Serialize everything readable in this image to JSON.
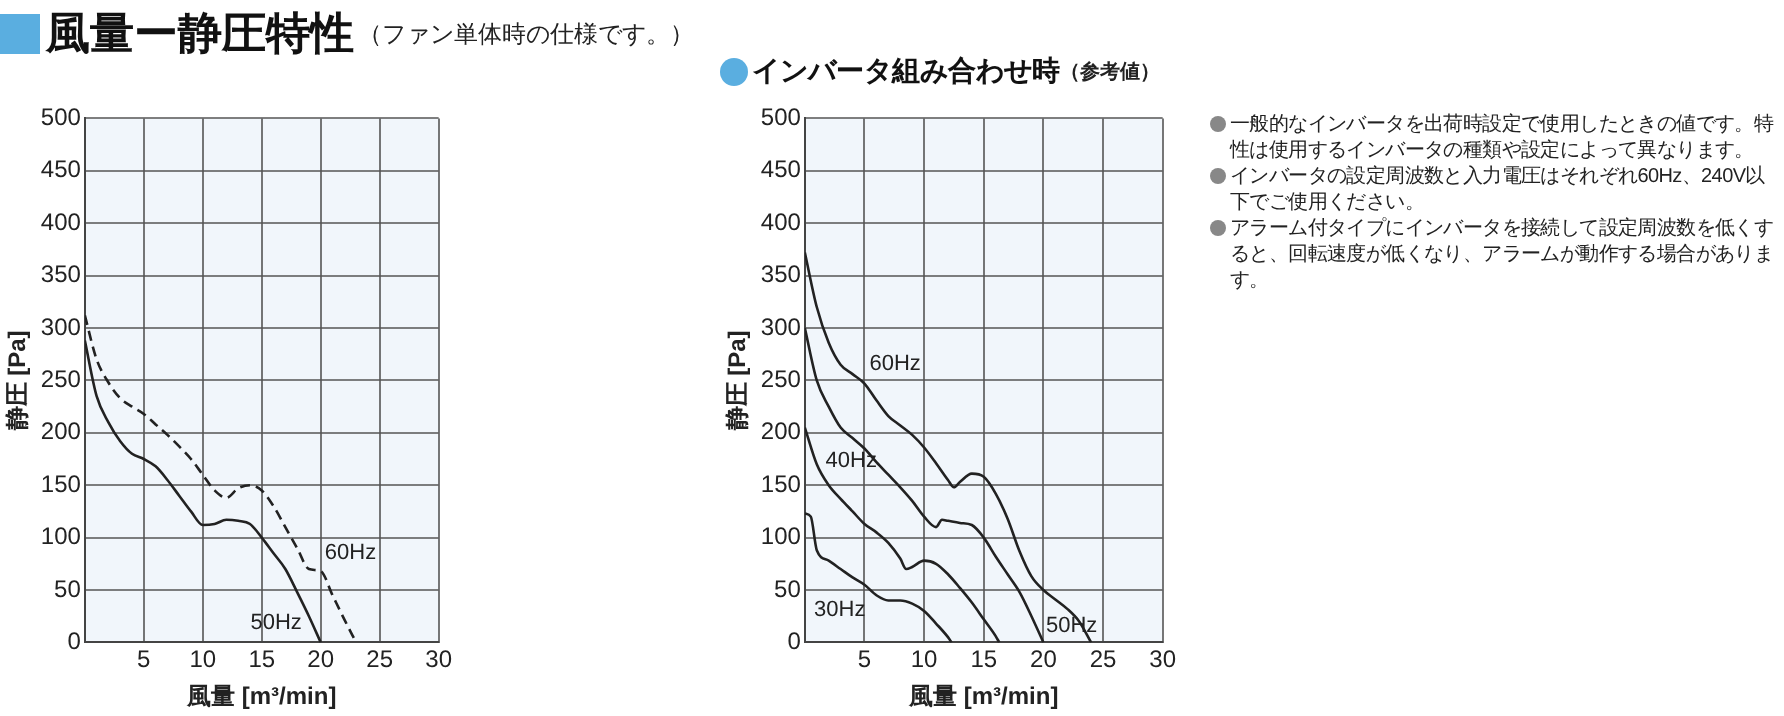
{
  "chart_data": [
    {
      "type": "line",
      "title": "風量ー静圧特性",
      "subtitle": "（ファン単体時の仕様です。）",
      "xlabel": "風量 [m³/min]",
      "ylabel": "静圧 [Pa]",
      "xlim": [
        0,
        30
      ],
      "ylim": [
        0,
        500
      ],
      "xticks": [
        {
          "value": 0,
          "label": null
        },
        5,
        10,
        15,
        20,
        25,
        30
      ],
      "yticks": [
        0,
        50,
        100,
        150,
        200,
        250,
        300,
        350,
        400,
        450,
        500
      ],
      "grid": true,
      "legend": false,
      "marker": "none",
      "series": [
        {
          "name": "50Hz",
          "color": "#222222",
          "line_style": "solid",
          "x": [
            0,
            1,
            2,
            3,
            4,
            5,
            6,
            7,
            8,
            9,
            10,
            11,
            12,
            13,
            14,
            15,
            16,
            17,
            18,
            19,
            20
          ],
          "values": [
            288,
            235,
            210,
            192,
            180,
            175,
            168,
            155,
            140,
            125,
            112,
            113,
            117,
            116,
            113,
            100,
            85,
            70,
            48,
            25,
            0
          ]
        },
        {
          "name": "60Hz",
          "color": "#222222",
          "line_style": "dashed",
          "x": [
            0,
            1,
            2,
            3,
            4,
            5,
            6,
            7,
            8,
            9,
            10,
            11,
            12,
            13,
            14,
            15,
            16,
            17,
            18,
            19,
            20,
            21,
            22,
            23
          ],
          "values": [
            312,
            270,
            248,
            233,
            225,
            218,
            208,
            198,
            187,
            175,
            160,
            145,
            138,
            147,
            150,
            145,
            130,
            110,
            90,
            70,
            68,
            45,
            22,
            0
          ]
        }
      ]
    },
    {
      "type": "line",
      "title": "インバータ組み合わせ時",
      "subtitle": "（参考値）",
      "xlabel": "風量 [m³/min]",
      "ylabel": "静圧 [Pa]",
      "xlim": [
        0,
        30
      ],
      "ylim": [
        0,
        500
      ],
      "xticks": [
        {
          "value": 0,
          "label": null
        },
        5,
        10,
        15,
        20,
        25,
        30
      ],
      "yticks": [
        0,
        50,
        100,
        150,
        200,
        250,
        300,
        350,
        400,
        450,
        500
      ],
      "grid": true,
      "legend": false,
      "marker": "none",
      "annotations": [
        "一般的なインバータを出荷時設定で使用したときの値です。特性は使用するインバータの種類や設定によって異なります。",
        "インバータの設定周波数と入力電圧はそれぞれ60Hz、240V以下でご使用ください。",
        "アラーム付タイプにインバータを接続して設定周波数を低くすると、回転速度が低くなり、アラームが動作する場合があります。"
      ],
      "series": [
        {
          "name": "60Hz",
          "color": "#222222",
          "line_style": "solid",
          "x": [
            0,
            1,
            2,
            3,
            4,
            5,
            6,
            7,
            8,
            9,
            10,
            11,
            12,
            12.5,
            13,
            14,
            15,
            16,
            17,
            18,
            19,
            20,
            21,
            22,
            23,
            24
          ],
          "values": [
            372,
            320,
            286,
            265,
            256,
            247,
            231,
            216,
            207,
            198,
            186,
            171,
            155,
            148,
            153,
            161,
            158,
            142,
            118,
            87,
            63,
            50,
            41,
            32,
            20,
            0
          ]
        },
        {
          "name": "50Hz",
          "color": "#222222",
          "line_style": "solid",
          "x": [
            0,
            1,
            2,
            3,
            4,
            5,
            6,
            7,
            8,
            9,
            10,
            11,
            11.5,
            12,
            13,
            14,
            15,
            16,
            17,
            18,
            19,
            20
          ],
          "values": [
            300,
            250,
            225,
            205,
            195,
            185,
            172,
            160,
            148,
            135,
            120,
            110,
            117,
            116,
            114,
            112,
            100,
            82,
            65,
            48,
            25,
            0
          ]
        },
        {
          "name": "40Hz",
          "color": "#222222",
          "line_style": "solid",
          "x": [
            0,
            1,
            2,
            3,
            4,
            5,
            6,
            7,
            8,
            8.5,
            9,
            10,
            11,
            12,
            13,
            14,
            15,
            16,
            16.3
          ],
          "values": [
            205,
            170,
            150,
            137,
            125,
            113,
            105,
            95,
            80,
            70,
            72,
            78,
            75,
            65,
            52,
            38,
            22,
            6,
            0
          ]
        },
        {
          "name": "30Hz",
          "color": "#222222",
          "line_style": "solid",
          "x": [
            0,
            0.5,
            1,
            2,
            3,
            4,
            5,
            6,
            7,
            8,
            9,
            10,
            11,
            12,
            12.3
          ],
          "values": [
            123,
            120,
            88,
            78,
            70,
            62,
            55,
            45,
            40,
            40,
            37,
            30,
            18,
            5,
            0
          ]
        }
      ]
    }
  ]
}
